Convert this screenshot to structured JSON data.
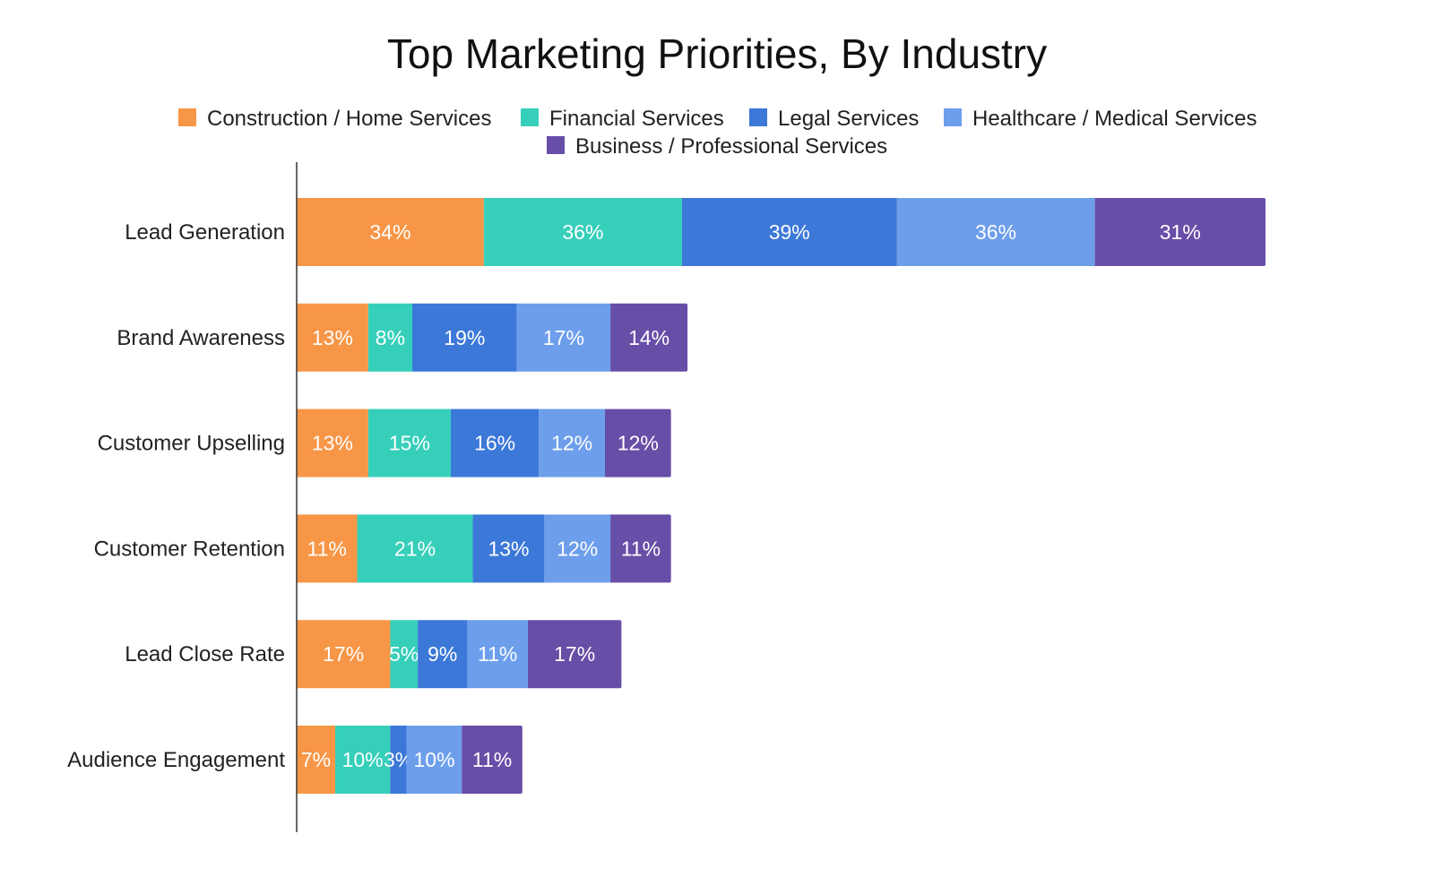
{
  "chart_data": {
    "type": "bar",
    "orientation": "horizontal",
    "stacked": true,
    "title": "Top Marketing Priorities, By Industry",
    "categories": [
      "Lead Generation",
      "Brand Awareness",
      "Customer Upselling",
      "Customer Retention",
      "Lead Close Rate",
      "Audience Engagement"
    ],
    "series": [
      {
        "name": "Construction / Home Services",
        "color": "#F79646",
        "values": [
          34,
          13,
          13,
          11,
          17,
          7
        ],
        "labels": [
          "34%",
          "13%",
          "13%",
          "11%",
          "17%",
          "7%"
        ]
      },
      {
        "name": "Financial Services",
        "color": "#36CFBA",
        "values": [
          36,
          8,
          15,
          21,
          5,
          10
        ],
        "labels": [
          "36%",
          "8%",
          "15%",
          "21%",
          "5%",
          "10%"
        ]
      },
      {
        "name": "Legal Services",
        "color": "#3C78D8",
        "values": [
          39,
          19,
          16,
          13,
          9,
          3
        ],
        "labels": [
          "39%",
          "19%",
          "16%",
          "13%",
          "9%",
          "3%"
        ]
      },
      {
        "name": "Healthcare / Medical Services",
        "color": "#6D9EEB",
        "values": [
          36,
          17,
          12,
          12,
          11,
          10
        ],
        "labels": [
          "36%",
          "17%",
          "12%",
          "12%",
          "11%",
          "10%"
        ]
      },
      {
        "name": "Business / Professional Services",
        "color": "#674EA7",
        "values": [
          31,
          14,
          12,
          11,
          17,
          11
        ],
        "labels": [
          "31%",
          "14%",
          "12%",
          "11%",
          "17%",
          "11%"
        ]
      }
    ],
    "xlim": [
      0,
      176
    ],
    "legend_position": "top",
    "grid": false,
    "xlabel": "",
    "ylabel": ""
  }
}
